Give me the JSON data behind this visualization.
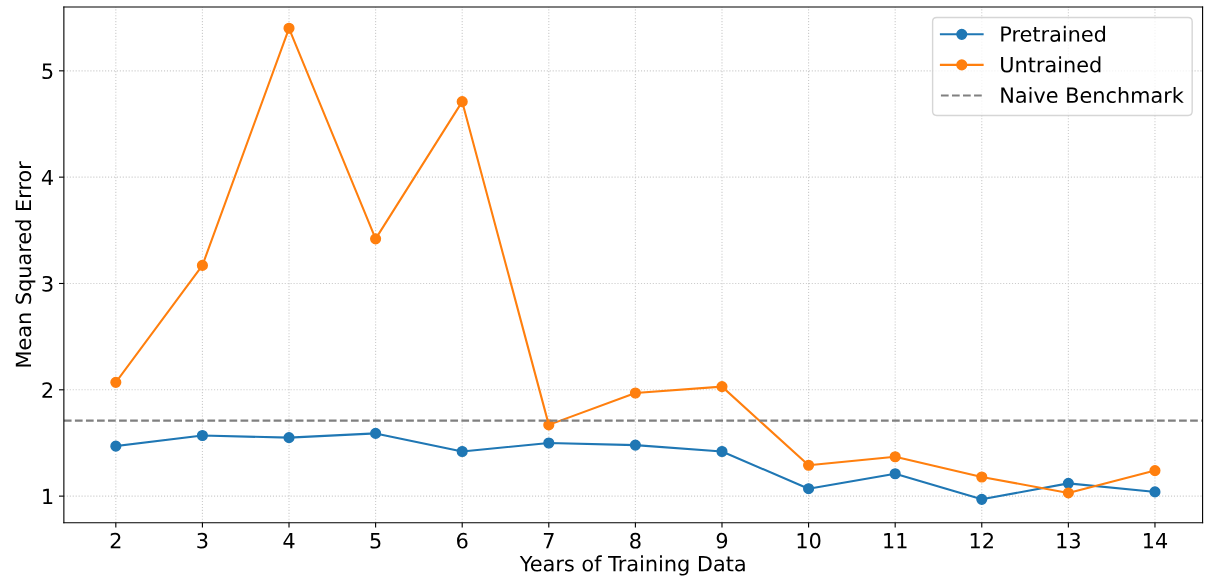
{
  "chart_data": {
    "type": "line",
    "xlabel": "Years of Training Data",
    "ylabel": "Mean Squared Error",
    "x": [
      2,
      3,
      4,
      5,
      6,
      7,
      8,
      9,
      10,
      11,
      12,
      13,
      14
    ],
    "series": [
      {
        "name": "Pretrained",
        "color": "#1f77b4",
        "values": [
          1.47,
          1.57,
          1.55,
          1.59,
          1.42,
          1.5,
          1.48,
          1.42,
          1.07,
          1.21,
          0.97,
          1.12,
          1.04
        ]
      },
      {
        "name": "Untrained",
        "color": "#ff7f0e",
        "values": [
          2.07,
          3.17,
          5.4,
          3.42,
          4.71,
          1.67,
          1.97,
          2.03,
          1.29,
          1.37,
          1.18,
          1.03,
          1.24
        ]
      }
    ],
    "ref_lines": [
      {
        "axis": "y",
        "value": 1.71,
        "label": "Naive Benchmark",
        "color": "#808080",
        "line_style": "dashed"
      }
    ],
    "xlim": [
      1.4,
      14.55
    ],
    "ylim": [
      0.75,
      5.6
    ],
    "xticks": [
      2,
      3,
      4,
      5,
      6,
      7,
      8,
      9,
      10,
      11,
      12,
      13,
      14
    ],
    "yticks": [
      1,
      2,
      3,
      4,
      5
    ],
    "grid": true,
    "legend": "top right",
    "marker": "circle",
    "line_style": "solid"
  }
}
